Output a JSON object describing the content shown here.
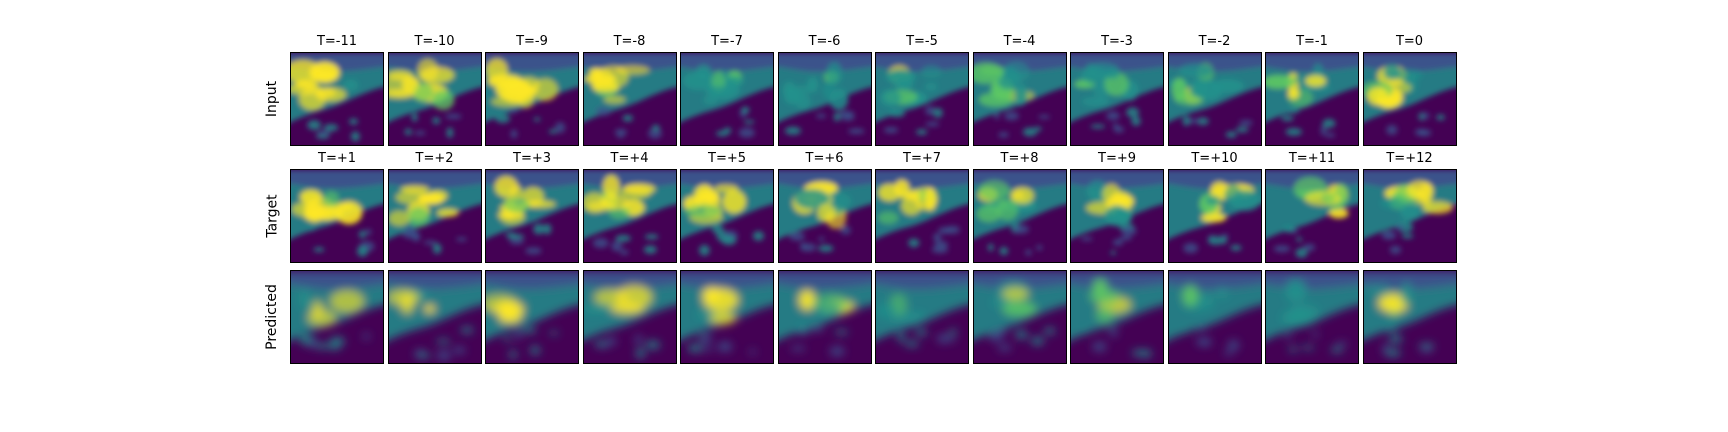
{
  "rows": [
    {
      "label": "Input",
      "panels": [
        "T=-11",
        "T=-10",
        "T=-9",
        "T=-8",
        "T=-7",
        "T=-6",
        "T=-5",
        "T=-4",
        "T=-3",
        "T=-2",
        "T=-1",
        "T=0"
      ]
    },
    {
      "label": "Target",
      "panels": [
        "T=+1",
        "T=+2",
        "T=+3",
        "T=+4",
        "T=+5",
        "T=+6",
        "T=+7",
        "T=+8",
        "T=+9",
        "T=+10",
        "T=+11",
        "T=+12"
      ]
    },
    {
      "label": "Predicted",
      "panels": [
        "T=+1",
        "T=+2",
        "T=+3",
        "T=+4",
        "T=+5",
        "T=+6",
        "T=+7",
        "T=+8",
        "T=+9",
        "T=+10",
        "T=+11",
        "T=+12"
      ]
    }
  ],
  "colormap": {
    "name": "viridis",
    "stops": [
      "#440154",
      "#3b528b",
      "#21918c",
      "#5ec962",
      "#fde725"
    ]
  }
}
